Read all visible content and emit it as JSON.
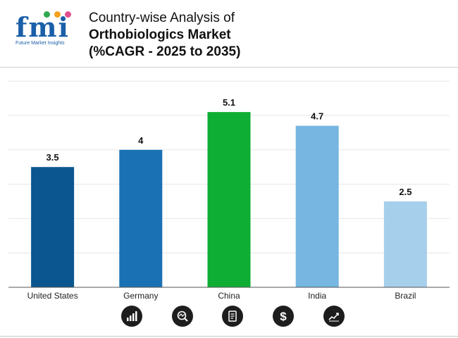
{
  "logo": {
    "text": "fmi",
    "tagline": "Future Market Insights",
    "dot_colors": [
      "#2fa84f",
      "#f4a21d",
      "#e34f8e"
    ]
  },
  "title": {
    "line1": "Country-wise Analysis of",
    "line2": "Orthobiologics Market",
    "line3": "(%CAGR - 2025 to 2035)"
  },
  "chart_data": {
    "type": "bar",
    "title": "Country-wise Analysis of Orthobiologics Market (%CAGR - 2025 to 2035)",
    "categories": [
      "United States",
      "Germany",
      "China",
      "India",
      "Brazil"
    ],
    "values": [
      3.5,
      4,
      5.1,
      4.7,
      2.5
    ],
    "value_labels": [
      "3.5",
      "4",
      "5.1",
      "4.7",
      "2.5"
    ],
    "bar_colors": [
      "#0b5690",
      "#1a72b5",
      "#0eae35",
      "#76b6e1",
      "#a6cfeb"
    ],
    "xlabel": "",
    "ylabel": "",
    "ylim": [
      0,
      6
    ],
    "grid": true,
    "gridline_step": 1
  },
  "footer_icons": [
    "bar-chart-icon",
    "chart-magnifier-icon",
    "report-document-icon",
    "dollar-icon",
    "growth-chart-icon"
  ]
}
